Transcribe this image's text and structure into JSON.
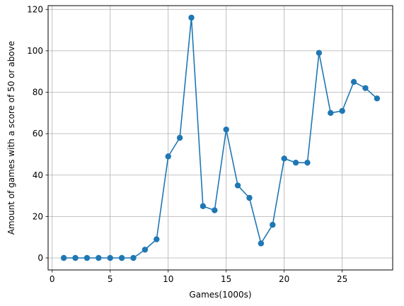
{
  "chart_data": {
    "type": "line",
    "title": "",
    "xlabel": "Games(1000s)",
    "ylabel": "Amount of games with a score of 50 or above",
    "xlim": [
      -0.35,
      29.35
    ],
    "ylim": [
      -5.8,
      121.8
    ],
    "xticks": [
      0,
      5,
      10,
      15,
      20,
      25
    ],
    "yticks": [
      0,
      20,
      40,
      60,
      80,
      100,
      120
    ],
    "grid": true,
    "legend": "none",
    "series": [
      {
        "color": "#1f77b4",
        "marker": "circle",
        "x": [
          1,
          2,
          3,
          4,
          5,
          6,
          7,
          8,
          9,
          10,
          11,
          12,
          13,
          14,
          15,
          16,
          17,
          18,
          19,
          20,
          21,
          22,
          23,
          24,
          25,
          26,
          27,
          28
        ],
        "y": [
          0,
          0,
          0,
          0,
          0,
          0,
          0,
          4,
          9,
          49,
          58,
          116,
          25,
          23,
          62,
          35,
          29,
          7,
          16,
          48,
          46,
          46,
          99,
          70,
          71,
          85,
          82,
          77
        ]
      }
    ]
  }
}
